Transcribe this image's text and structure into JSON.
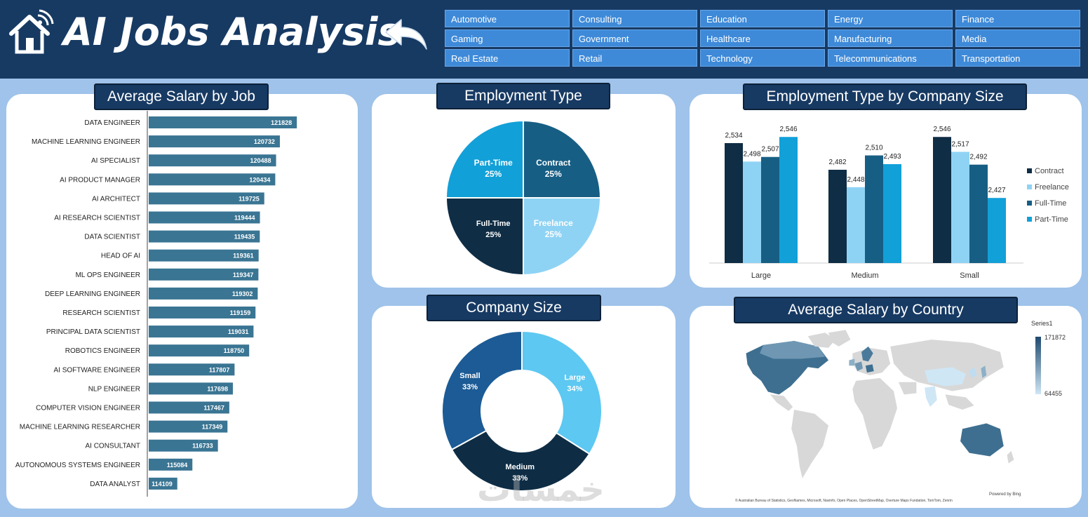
{
  "header": {
    "title": "AI Jobs Analysis",
    "home_icon": "home-wifi-icon",
    "back_icon": "back-arrow-icon"
  },
  "industries": [
    "Automotive",
    "Consulting",
    "Education",
    "Energy",
    "Finance",
    "Gaming",
    "Government",
    "Healthcare",
    "Manufacturing",
    "Media",
    "Real Estate",
    "Retail",
    "Technology",
    "Telecommunications",
    "Transportation"
  ],
  "salary_by_job": {
    "title": "Average Salary by Job"
  },
  "employment_type": {
    "title": "Employment Type"
  },
  "employment_by_size": {
    "title": "Employment Type by Company Size"
  },
  "company_size": {
    "title": "Company Size"
  },
  "salary_by_country": {
    "title": "Average Salary by Country",
    "legend_title": "Series1",
    "max_label": "171872",
    "min_label": "64455",
    "powered_by": "Powered by Bing",
    "attribution": "© Australian Bureau of Statistics, GeoNames, Microsoft, Navinfo, Open Places, OpenStreetMap, Overture Maps Fundation, TomTom, Zenrin"
  },
  "watermark": "خمسات",
  "colors": {
    "header_bg": "#173a63",
    "page_bg": "#9fc3ea",
    "slicer_btn": "#3e8ad9",
    "bar": "#3a7593",
    "contract": "#0f2d45",
    "freelance": "#8fd3f4",
    "full_time": "#175e84",
    "part_time": "#12a0d8"
  },
  "chart_data": [
    {
      "type": "bar",
      "orientation": "horizontal",
      "title": "Average Salary by Job",
      "categories": [
        "DATA ENGINEER",
        "MACHINE LEARNING ENGINEER",
        "AI SPECIALIST",
        "AI PRODUCT MANAGER",
        "AI ARCHITECT",
        "AI RESEARCH SCIENTIST",
        "DATA SCIENTIST",
        "HEAD OF AI",
        "ML OPS ENGINEER",
        "DEEP LEARNING ENGINEER",
        "RESEARCH SCIENTIST",
        "PRINCIPAL DATA SCIENTIST",
        "ROBOTICS ENGINEER",
        "AI SOFTWARE ENGINEER",
        "NLP ENGINEER",
        "COMPUTER VISION ENGINEER",
        "MACHINE LEARNING RESEARCHER",
        "AI CONSULTANT",
        "AUTONOMOUS SYSTEMS ENGINEER",
        "DATA ANALYST"
      ],
      "values": [
        121828,
        120732,
        120488,
        120434,
        119725,
        119444,
        119435,
        119361,
        119347,
        119302,
        119159,
        119031,
        118750,
        117807,
        117698,
        117467,
        117349,
        116733,
        115084,
        114109
      ],
      "xlim": [
        110000,
        122500
      ]
    },
    {
      "type": "pie",
      "title": "Employment Type",
      "labels": [
        "Contract",
        "Freelance",
        "Full-Time",
        "Part-Time"
      ],
      "values": [
        25,
        25,
        25,
        25
      ],
      "value_labels": [
        "25%",
        "25%",
        "25%",
        "25%"
      ]
    },
    {
      "type": "bar",
      "title": "Employment Type by Company Size",
      "categories": [
        "Large",
        "Medium",
        "Small"
      ],
      "series": [
        {
          "name": "Contract",
          "values": [
            2534,
            2482,
            2546
          ],
          "labels": [
            "2,534",
            "2,482",
            "2,546"
          ]
        },
        {
          "name": "Freelance",
          "values": [
            2498,
            2448,
            2517
          ],
          "labels": [
            "2,498",
            "2,448",
            "2,517"
          ]
        },
        {
          "name": "Full-Time",
          "values": [
            2507,
            2510,
            2492
          ],
          "labels": [
            "2,507",
            "2,510",
            "2,492"
          ]
        },
        {
          "name": "Part-Time",
          "values": [
            2546,
            2493,
            2427
          ],
          "labels": [
            "2,546",
            "2,493",
            "2,427"
          ]
        }
      ],
      "ylim": [
        2300,
        2560
      ],
      "legend": "right"
    },
    {
      "type": "pie",
      "variant": "doughnut",
      "title": "Company Size",
      "labels": [
        "Large",
        "Medium",
        "Small"
      ],
      "values": [
        34,
        33,
        33
      ],
      "value_labels": [
        "34%",
        "33%",
        "33%"
      ]
    }
  ]
}
